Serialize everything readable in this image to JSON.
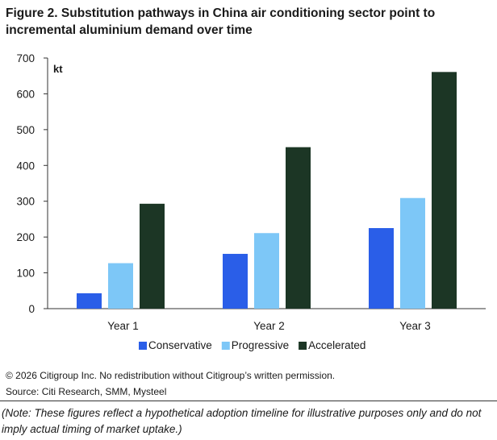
{
  "title": "Figure 2. Substitution pathways in China air conditioning sector point to incremental aluminium demand over time",
  "chart_data": {
    "type": "bar",
    "title": "Figure 2. Substitution pathways in China air conditioning sector point to incremental aluminium demand over time",
    "ylabel": "kt",
    "xlabel": "",
    "ylim": [
      0,
      700
    ],
    "yticks": [
      0,
      100,
      200,
      300,
      400,
      500,
      600,
      700
    ],
    "grid": false,
    "legend_position": "bottom",
    "categories": [
      "Year 1",
      "Year 2",
      "Year 3"
    ],
    "series": [
      {
        "name": "Conservative",
        "color": "#2a5ee8",
        "values": [
          43,
          153,
          225
        ]
      },
      {
        "name": "Progressive",
        "color": "#7dc7f7",
        "values": [
          127,
          211,
          309
        ]
      },
      {
        "name": "Accelerated",
        "color": "#1c3625",
        "values": [
          293,
          451,
          661
        ]
      }
    ]
  },
  "footer": {
    "copyright": "© 2026 Citigroup Inc. No redistribution without Citigroup’s written permission.",
    "source": "Source: Citi Research, SMM, Mysteel",
    "note": "(Note: These figures reflect a hypothetical adoption timeline for illustrative purposes only and do not imply actual timing of market uptake.)"
  }
}
